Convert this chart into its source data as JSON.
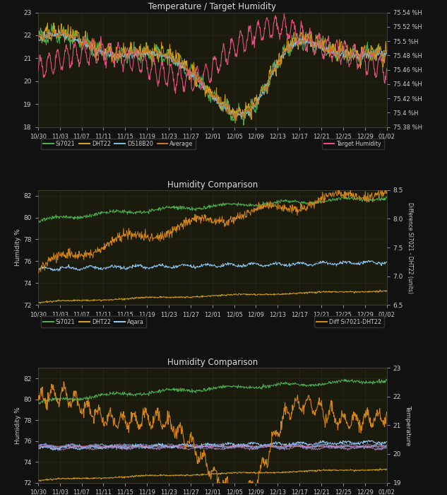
{
  "bg_color": "#111111",
  "panel_bg": "#1a1a0d",
  "grid_color": "#2a2a2a",
  "text_color": "#cccccc",
  "title_color": "#dddddd",
  "colors": {
    "si7021": "#4caf50",
    "dht22": "#d4a017",
    "ds18b20": "#7eb8d4",
    "average": "#c87820",
    "target_humidity": "#e05080",
    "aqara": "#90caf9",
    "diff_si7021_dht22": "#d4851a",
    "temperature": "#d4851a",
    "si7021_diff": "#90caf9",
    "dht22_diff": "#ce93d8",
    "aqara_diff": "#9090e0"
  },
  "x_ticks": [
    "10/30",
    "11/03",
    "11/07",
    "11/11",
    "11/15",
    "11/19",
    "11/23",
    "11/27",
    "12/01",
    "12/05",
    "12/09",
    "12/13",
    "12/17",
    "12/21",
    "12/25",
    "12/29",
    "01/02"
  ],
  "panel1": {
    "title": "Temperature / Target Humidity",
    "yleft_range": [
      18,
      23
    ],
    "yright_range": [
      75.38,
      75.54
    ],
    "yright_ticks": [
      75.38,
      75.4,
      75.42,
      75.44,
      75.46,
      75.48,
      75.5,
      75.52,
      75.54
    ],
    "yright_tick_labels": [
      "75.38 %H",
      "75.4 %H",
      "75.42 %H",
      "75.44 %H",
      "75.46 %H",
      "75.48 %H",
      "75.5 %H",
      "75.52 %H",
      "75.54 %H"
    ],
    "yleft_ticks": [
      18,
      19,
      20,
      21,
      22,
      23
    ]
  },
  "panel2": {
    "title": "Humidity Comparison",
    "yleft_label": "Humidity %",
    "yright_label": "Difference SI7021 - DHT22 (units)",
    "yleft_range": [
      72,
      82.5
    ],
    "yright_range": [
      6.5,
      8.5
    ],
    "yleft_ticks": [
      72,
      74,
      76,
      78,
      80,
      82
    ],
    "yright_ticks": [
      6.5,
      7.0,
      7.5,
      8.0,
      8.5
    ]
  },
  "panel3": {
    "title": "Humidity Comparison",
    "yleft_label": "Humidity %",
    "yright_label": "Temperature",
    "yleft_range": [
      72,
      83
    ],
    "yright_range": [
      19,
      23
    ],
    "yleft_ticks": [
      72,
      74,
      76,
      78,
      80,
      82
    ],
    "yright_ticks": [
      19,
      20,
      21,
      22,
      23
    ]
  }
}
